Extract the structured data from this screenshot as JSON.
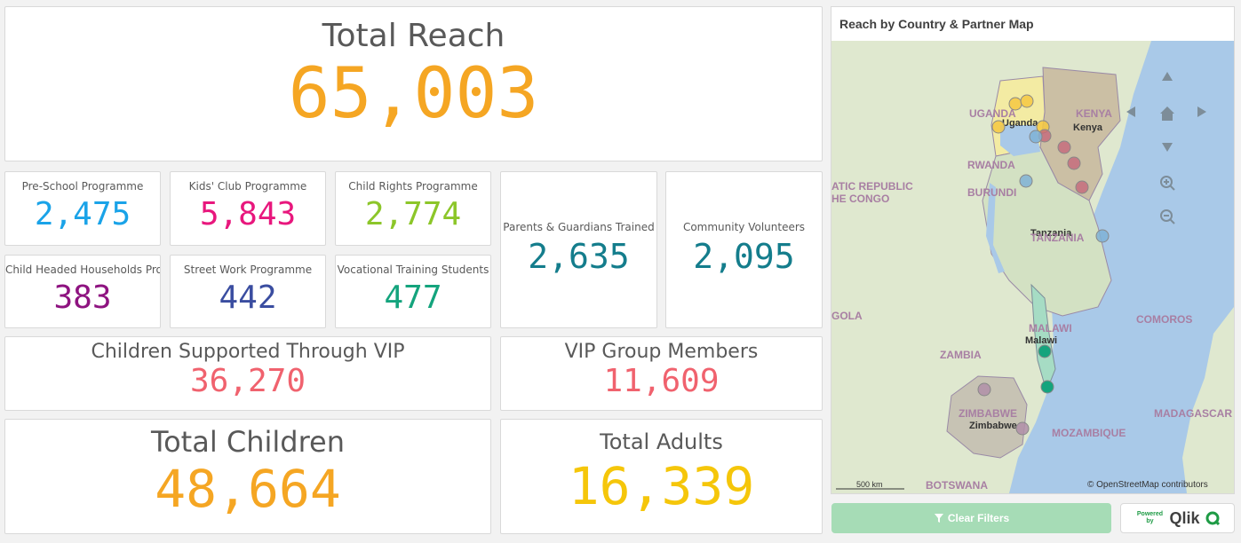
{
  "total_reach": {
    "title": "Total Reach",
    "value": "65,003",
    "color": "#f5a623"
  },
  "programmes": [
    {
      "title": "Pre-School Programme",
      "value": "2,475",
      "color": "#1aa3e8"
    },
    {
      "title": "Kids' Club Programme",
      "value": "5,843",
      "color": "#e8177d"
    },
    {
      "title": "Child Rights Programme",
      "value": "2,774",
      "color": "#8cc629"
    },
    {
      "title": "Child Headed Households Pro...",
      "value": "383",
      "color": "#8e1380"
    },
    {
      "title": "Street Work Programme",
      "value": "442",
      "color": "#3a4da0"
    },
    {
      "title": "Vocational Training Students",
      "value": "477",
      "color": "#14a47d"
    }
  ],
  "parents": {
    "title": "Parents & Guardians Trained",
    "value": "2,635",
    "color": "#147d8c"
  },
  "volunteers": {
    "title": "Community Volunteers",
    "value": "2,095",
    "color": "#147d8c"
  },
  "vip_children": {
    "title": "Children Supported Through VIP",
    "value": "36,270",
    "color": "#f0626e"
  },
  "vip_members": {
    "title": "VIP Group Members",
    "value": "11,609",
    "color": "#f0626e"
  },
  "total_children": {
    "title": "Total Children",
    "value": "48,664",
    "color": "#f5a623"
  },
  "total_adults": {
    "title": "Total Adults",
    "value": "16,339",
    "color": "#f5c60a"
  },
  "map": {
    "title": "Reach by Country & Partner Map",
    "labels": {
      "uganda": "UGANDA",
      "uganda_city": "Uganda",
      "kenya": "KENYA",
      "kenya_city": "Kenya",
      "rwanda": "RWANDA",
      "burundi": "BURUNDI",
      "drc1": "ATIC REPUBLIC",
      "drc2": "HE CONGO",
      "tanzania_city": "Tanzania",
      "tanzania": "TANZANIA",
      "angola": "GOLA",
      "malawi": "MALAWI",
      "malawi_city": "Malawi",
      "zambia": "ZAMBIA",
      "comoros": "COMOROS",
      "zimbabwe": "ZIMBABWE",
      "zimbabwe_city": "Zimbabwe",
      "madagascar": "MADAGASCAR",
      "mozambique": "MOZAMBIQUE",
      "botswana": "BOTSWANA",
      "scale": "500 km",
      "attribution": "© OpenStreetMap contributors"
    }
  },
  "buttons": {
    "clear_filters": "Clear Filters"
  },
  "branding": {
    "powered_by": "Powered by",
    "qlik": "Qlik"
  }
}
